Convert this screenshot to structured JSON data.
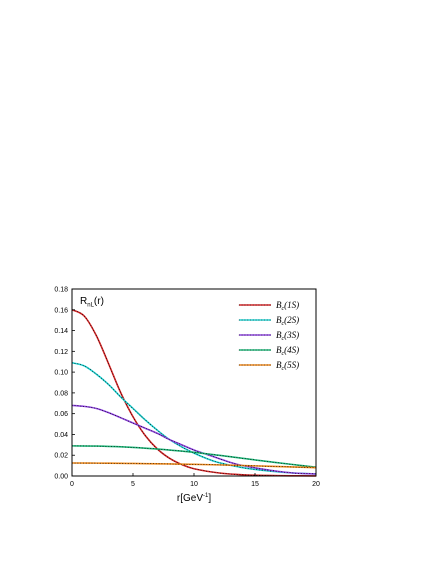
{
  "chart_data": {
    "type": "line",
    "title": "",
    "annotation": {
      "main": "R",
      "sub": "nL",
      "tail": "(r)"
    },
    "xlabel": {
      "main": "r",
      "tail": "[GeV",
      "sup": "-1",
      "close": "]"
    },
    "ylabel": "",
    "xlim": [
      0,
      20
    ],
    "ylim": [
      0,
      0.18
    ],
    "xticks": [
      "0",
      "5",
      "10",
      "15",
      "20"
    ],
    "yticks": [
      "0.00",
      "0.02",
      "0.04",
      "0.06",
      "0.08",
      "0.10",
      "0.12",
      "0.14",
      "0.16",
      "0.18"
    ],
    "grid": false,
    "legend_position": "top-right",
    "series": [
      {
        "name": "B_c(1S)",
        "label_main": "B",
        "label_sub": "c",
        "label_tail": "(1S)",
        "color": "#d62728",
        "x": [
          0,
          1,
          2,
          3,
          4,
          5,
          6,
          7,
          8,
          9,
          10,
          12,
          14,
          16,
          18,
          20
        ],
        "values": [
          0.16,
          0.154,
          0.135,
          0.108,
          0.08,
          0.057,
          0.039,
          0.026,
          0.017,
          0.011,
          0.007,
          0.003,
          0.0012,
          0.0005,
          0.0002,
          0.0001
        ]
      },
      {
        "name": "B_c(2S)",
        "label_main": "B",
        "label_sub": "c",
        "label_tail": "(2S)",
        "color": "#22d3d3",
        "x": [
          0,
          1,
          2,
          3,
          4,
          5,
          6,
          7,
          8,
          9,
          10,
          11,
          12,
          14,
          16,
          18,
          20
        ],
        "values": [
          0.109,
          0.106,
          0.098,
          0.088,
          0.076,
          0.065,
          0.054,
          0.044,
          0.035,
          0.028,
          0.022,
          0.017,
          0.013,
          0.008,
          0.005,
          0.003,
          0.002
        ]
      },
      {
        "name": "B_c(3S)",
        "label_main": "B",
        "label_sub": "c",
        "label_tail": "(3S)",
        "color": "#8e44e0",
        "x": [
          0,
          1,
          2,
          3,
          4,
          5,
          6,
          7,
          8,
          9,
          10,
          11,
          12,
          13,
          14,
          16,
          18,
          20
        ],
        "values": [
          0.068,
          0.067,
          0.065,
          0.061,
          0.056,
          0.051,
          0.046,
          0.041,
          0.035,
          0.03,
          0.025,
          0.021,
          0.017,
          0.013,
          0.01,
          0.006,
          0.003,
          0.002
        ]
      },
      {
        "name": "B_c(4S)",
        "label_main": "B",
        "label_sub": "c",
        "label_tail": "(4S)",
        "color": "#1fb87a",
        "x": [
          0,
          2,
          4,
          6,
          8,
          10,
          12,
          14,
          16,
          18,
          20
        ],
        "values": [
          0.029,
          0.0288,
          0.0281,
          0.0268,
          0.025,
          0.0228,
          0.02,
          0.017,
          0.014,
          0.0112,
          0.0085
        ]
      },
      {
        "name": "B_c(5S)",
        "label_main": "B",
        "label_sub": "c",
        "label_tail": "(5S)",
        "color": "#f08a1c",
        "x": [
          0,
          2,
          4,
          6,
          8,
          10,
          12,
          14,
          16,
          18,
          20
        ],
        "values": [
          0.0125,
          0.0124,
          0.0122,
          0.0119,
          0.0116,
          0.0112,
          0.0107,
          0.0101,
          0.0094,
          0.0087,
          0.008
        ]
      }
    ]
  }
}
